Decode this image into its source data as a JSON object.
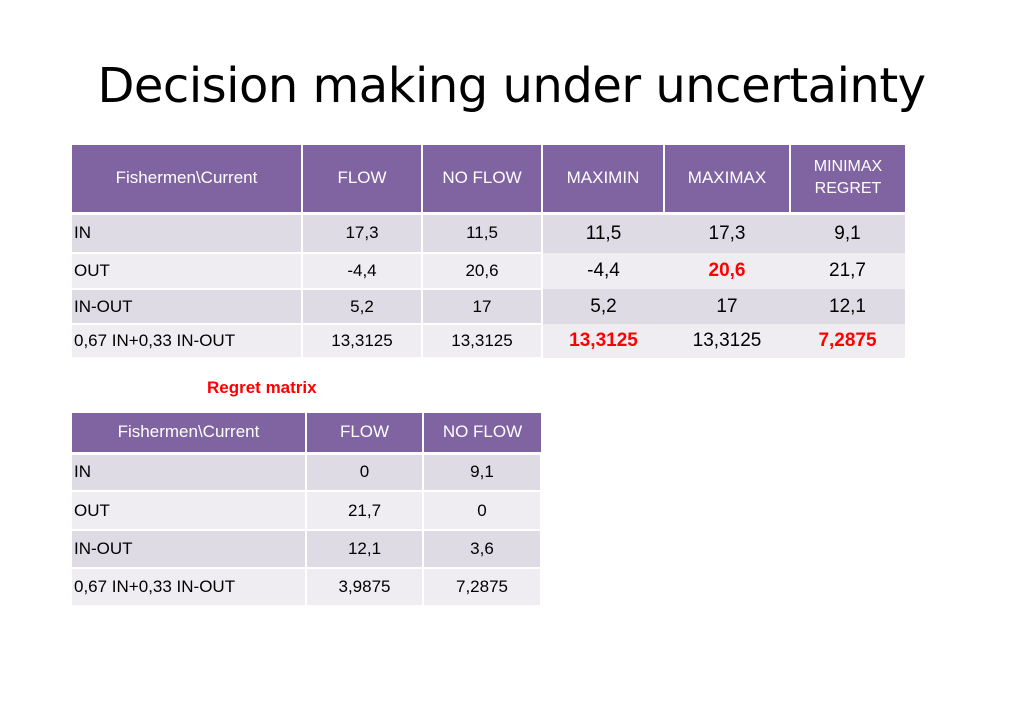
{
  "title": "Decision making under uncertainty",
  "main_table": {
    "headers": [
      "Fishermen\\Current",
      "FLOW",
      "NO FLOW",
      "MAXIMIN",
      "MAXIMAX",
      "MINIMAX REGRET"
    ],
    "rows": [
      {
        "name": "IN",
        "flow": "17,3",
        "no_flow": "11,5",
        "maximin": "11,5",
        "maximax": "17,3",
        "minimax_regret": "9,1"
      },
      {
        "name": "OUT",
        "flow": "-4,4",
        "no_flow": "20,6",
        "maximin": "-4,4",
        "maximax": "20,6",
        "minimax_regret": "21,7"
      },
      {
        "name": "IN-OUT",
        "flow": "5,2",
        "no_flow": "17",
        "maximin": "5,2",
        "maximax": "17",
        "minimax_regret": "12,1"
      },
      {
        "name": "0,67 IN+0,33 IN-OUT",
        "flow": "13,3125",
        "no_flow": "13,3125",
        "maximin": "13,3125",
        "maximax": "13,3125",
        "minimax_regret": "7,2875"
      }
    ],
    "highlight_color": "#ff0000"
  },
  "regret_label": "Regret matrix",
  "regret_table": {
    "headers": [
      "Fishermen\\Current",
      "FLOW",
      "NO FLOW"
    ],
    "rows": [
      {
        "name": "IN",
        "flow": "0",
        "no_flow": "9,1"
      },
      {
        "name": "OUT",
        "flow": "21,7",
        "no_flow": "0"
      },
      {
        "name": "IN-OUT",
        "flow": "12,1",
        "no_flow": "3,6"
      },
      {
        "name": "0,67 IN+0,33 IN-OUT",
        "flow": "3,9875",
        "no_flow": "7,2875"
      }
    ]
  },
  "colors": {
    "header_bg": "#8064a2",
    "row_dark": "#dfdbe5",
    "row_light": "#efedf2"
  }
}
